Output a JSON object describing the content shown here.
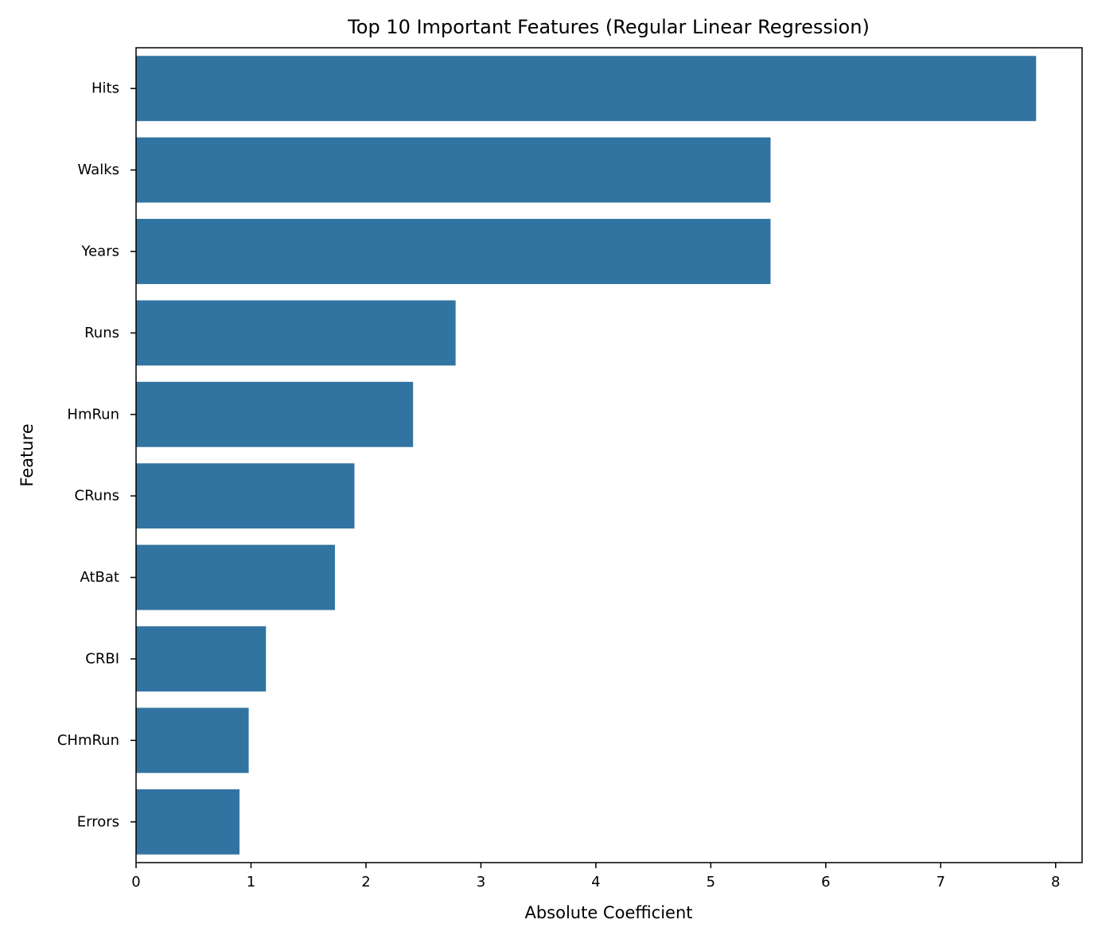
{
  "chart_data": {
    "type": "bar",
    "orientation": "horizontal",
    "title": "Top 10 Important Features (Regular Linear Regression)",
    "xlabel": "Absolute Coefficient",
    "ylabel": "Feature",
    "categories": [
      "Hits",
      "Walks",
      "Years",
      "Runs",
      "HmRun",
      "CRuns",
      "AtBat",
      "CRBI",
      "CHmRun",
      "Errors"
    ],
    "values": [
      7.83,
      5.52,
      5.52,
      2.78,
      2.41,
      1.9,
      1.73,
      1.13,
      0.98,
      0.9
    ],
    "xlim": [
      0,
      8.23
    ],
    "xticks": [
      0,
      1,
      2,
      3,
      4,
      5,
      6,
      7,
      8
    ],
    "grid": false,
    "legend": "none",
    "bar_color": "#3274a1"
  }
}
